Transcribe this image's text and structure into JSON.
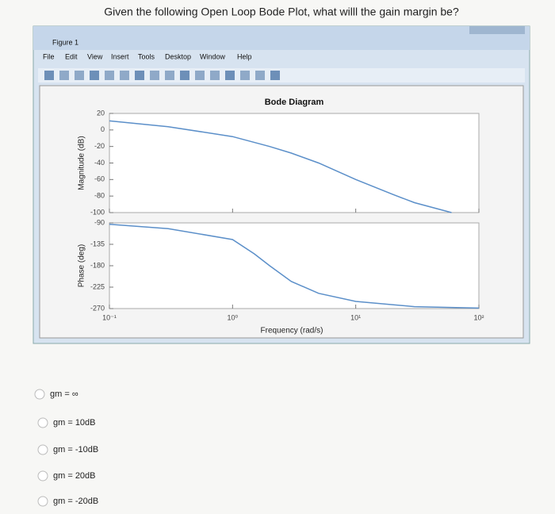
{
  "question": "Given the following Open Loop Bode Plot, what willl the gain margin be?",
  "window": {
    "title": "Figure 1",
    "menu": [
      "File",
      "Edit",
      "View",
      "Insert",
      "Tools",
      "Desktop",
      "Window",
      "Help"
    ]
  },
  "chart": {
    "title": "Bode Diagram",
    "xlabel": "Frequency (rad/s)",
    "xscale": "log",
    "color": "#5b8fc9",
    "xlim": [
      0.1,
      100
    ],
    "xticks": [
      {
        "value": 0.1,
        "label": "10⁻¹"
      },
      {
        "value": 1,
        "label": "10⁰"
      },
      {
        "value": 10,
        "label": "10¹"
      },
      {
        "value": 100,
        "label": "10²"
      }
    ],
    "magnitude": {
      "ylabel": "Magnitude (dB)",
      "ylim": [
        -100,
        20
      ],
      "yticks": [
        20,
        0,
        -20,
        -40,
        -60,
        -80,
        -100
      ],
      "x": [
        0.1,
        0.3,
        1,
        2,
        3,
        5,
        10,
        20,
        30,
        60
      ],
      "values": [
        11,
        4,
        -8,
        -20,
        -28,
        -40,
        -60,
        -78,
        -88,
        -100
      ]
    },
    "phase": {
      "ylabel": "Phase (deg)",
      "ylim": [
        -270,
        -90
      ],
      "yticks": [
        -90,
        -135,
        -180,
        -225,
        -270
      ],
      "x": [
        0.1,
        0.3,
        1,
        1.5,
        2,
        3,
        5,
        10,
        30,
        100
      ],
      "values": [
        -93,
        -102,
        -125,
        -155,
        -180,
        -213,
        -238,
        -255,
        -266,
        -269
      ]
    }
  },
  "options": [
    "gm = ∞",
    "gm = 10dB",
    "gm = -10dB",
    "gm = 20dB",
    "gm = -20dB"
  ]
}
